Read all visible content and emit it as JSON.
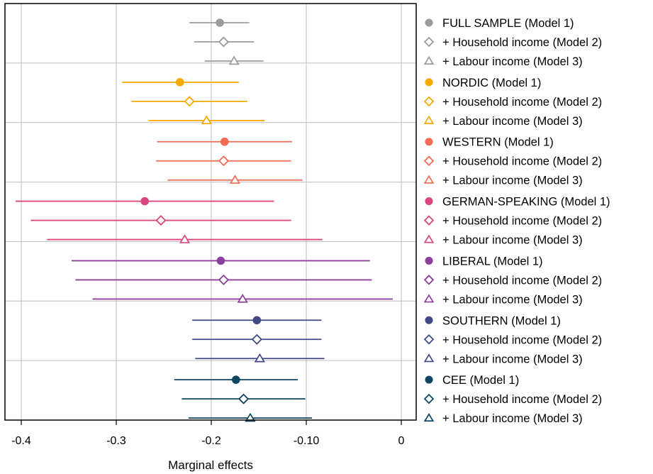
{
  "chart_data": {
    "type": "dot-whisker",
    "xlabel": "Marginal effects",
    "xlim": [
      -0.42,
      0.0
    ],
    "x_ticks": [
      -0.4,
      -0.3,
      -0.2,
      -0.1,
      0
    ],
    "x_tick_labels": [
      "-0.4",
      "-0.3",
      "-0.2",
      "-0.10",
      "0"
    ],
    "grid": true,
    "legend_position": "right",
    "groups": [
      {
        "color": "#9b9b9b",
        "series": [
          {
            "label": "FULL SAMPLE (Model 1)",
            "marker": "circle",
            "estimate": -0.191,
            "ci": [
              -0.223,
              -0.16
            ]
          },
          {
            "label": "+ Household income (Model 2)",
            "marker": "diamond",
            "estimate": -0.187,
            "ci": [
              -0.218,
              -0.155
            ]
          },
          {
            "label": "+ Labour income (Model 3)",
            "marker": "triangle",
            "estimate": -0.176,
            "ci": [
              -0.207,
              -0.145
            ]
          }
        ]
      },
      {
        "color": "#f5a800",
        "series": [
          {
            "label": "NORDIC (Model 1)",
            "marker": "circle",
            "estimate": -0.233,
            "ci": [
              -0.294,
              -0.171
            ]
          },
          {
            "label": "+ Household income (Model 2)",
            "marker": "diamond",
            "estimate": -0.223,
            "ci": [
              -0.284,
              -0.162
            ]
          },
          {
            "label": "+ Labour income (Model 3)",
            "marker": "triangle",
            "estimate": -0.205,
            "ci": [
              -0.266,
              -0.144
            ]
          }
        ]
      },
      {
        "color": "#f26b52",
        "series": [
          {
            "label": "WESTERN (Model 1)",
            "marker": "circle",
            "estimate": -0.186,
            "ci": [
              -0.257,
              -0.115
            ]
          },
          {
            "label": "+ Household income (Model 2)",
            "marker": "diamond",
            "estimate": -0.187,
            "ci": [
              -0.258,
              -0.116
            ]
          },
          {
            "label": "+ Labour income (Model 3)",
            "marker": "triangle",
            "estimate": -0.175,
            "ci": [
              -0.246,
              -0.104
            ]
          }
        ]
      },
      {
        "color": "#d9477e",
        "series": [
          {
            "label": "GERMAN-SPEAKING (Model 1)",
            "marker": "circle",
            "estimate": -0.27,
            "ci": [
              -0.406,
              -0.134
            ]
          },
          {
            "label": "+ Household income (Model 2)",
            "marker": "diamond",
            "estimate": -0.253,
            "ci": [
              -0.39,
              -0.116
            ]
          },
          {
            "label": "+ Labour income (Model 3)",
            "marker": "triangle",
            "estimate": -0.228,
            "ci": [
              -0.373,
              -0.083
            ]
          }
        ]
      },
      {
        "color": "#8b3f9b",
        "series": [
          {
            "label": "LIBERAL (Model 1)",
            "marker": "circle",
            "estimate": -0.19,
            "ci": [
              -0.347,
              -0.033
            ]
          },
          {
            "label": "+ Household income (Model 2)",
            "marker": "diamond",
            "estimate": -0.187,
            "ci": [
              -0.343,
              -0.031
            ]
          },
          {
            "label": "+ Labour income (Model 3)",
            "marker": "triangle",
            "estimate": -0.167,
            "ci": [
              -0.325,
              -0.009
            ]
          }
        ]
      },
      {
        "color": "#3f4a85",
        "series": [
          {
            "label": "SOUTHERN (Model 1)",
            "marker": "circle",
            "estimate": -0.152,
            "ci": [
              -0.22,
              -0.084
            ]
          },
          {
            "label": "+ Household income (Model 2)",
            "marker": "diamond",
            "estimate": -0.152,
            "ci": [
              -0.22,
              -0.084
            ]
          },
          {
            "label": "+ Labour income (Model 3)",
            "marker": "triangle",
            "estimate": -0.149,
            "ci": [
              -0.217,
              -0.081
            ]
          }
        ]
      },
      {
        "color": "#0e4560",
        "series": [
          {
            "label": "CEE (Model 1)",
            "marker": "circle",
            "estimate": -0.174,
            "ci": [
              -0.239,
              -0.109
            ]
          },
          {
            "label": "+ Household income (Model 2)",
            "marker": "diamond",
            "estimate": -0.166,
            "ci": [
              -0.231,
              -0.101
            ]
          },
          {
            "label": "+ Labour income (Model 3)",
            "marker": "triangle",
            "estimate": -0.159,
            "ci": [
              -0.224,
              -0.094
            ]
          }
        ]
      }
    ]
  }
}
